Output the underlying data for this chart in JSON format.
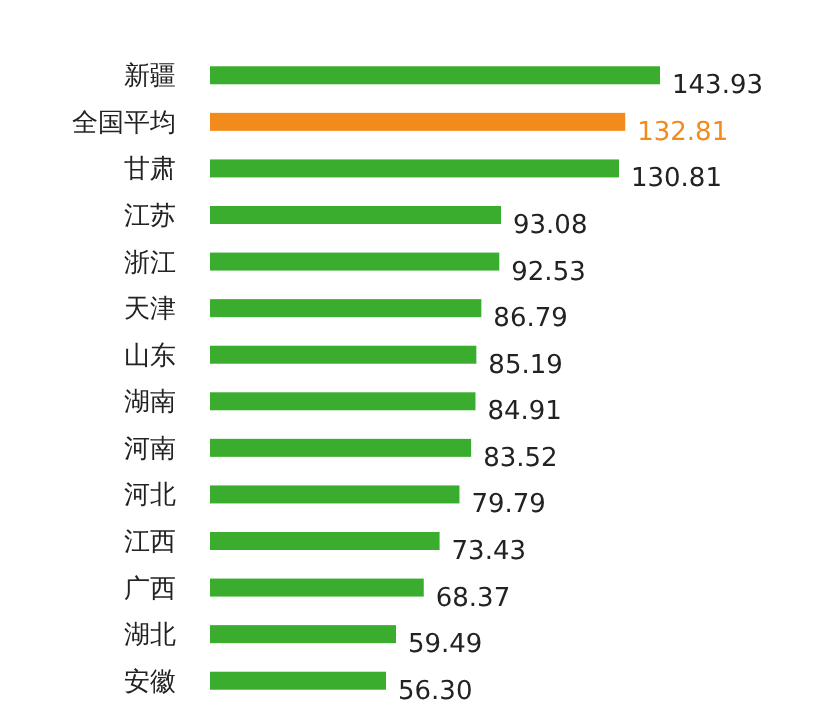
{
  "chart_data": {
    "type": "bar",
    "orientation": "horizontal",
    "categories": [
      "新疆",
      "全国平均",
      "甘肃",
      "江苏",
      "浙江",
      "天津",
      "山东",
      "湖南",
      "河南",
      "河北",
      "江西",
      "广西",
      "湖北",
      "安徽"
    ],
    "values": [
      143.93,
      132.81,
      130.81,
      93.08,
      92.53,
      86.79,
      85.19,
      84.91,
      83.52,
      79.79,
      73.43,
      68.37,
      59.49,
      56.3
    ],
    "value_labels": [
      "143.93",
      "132.81",
      "130.81",
      "93.08",
      "92.53",
      "86.79",
      "85.19",
      "84.91",
      "83.52",
      "79.79",
      "73.43",
      "68.37",
      "59.49",
      "56.30"
    ],
    "colors": [
      "#3aad2f",
      "#f28a1c",
      "#3aad2f",
      "#3aad2f",
      "#3aad2f",
      "#3aad2f",
      "#3aad2f",
      "#3aad2f",
      "#3aad2f",
      "#3aad2f",
      "#3aad2f",
      "#3aad2f",
      "#3aad2f",
      "#3aad2f"
    ]
  }
}
